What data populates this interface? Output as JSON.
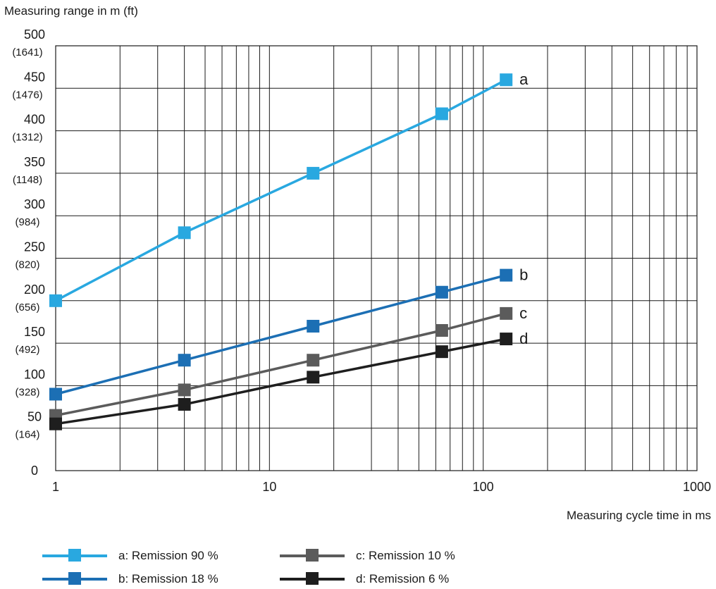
{
  "chart_data": {
    "type": "line",
    "ylabel": "Measuring range in m (ft)",
    "xlabel": "Measuring cycle time in ms",
    "x_scale": "log",
    "xlim": [
      1,
      1000
    ],
    "ylim": [
      0,
      500
    ],
    "x_ticks": [
      {
        "value": 1,
        "label": "1"
      },
      {
        "value": 10,
        "label": "10"
      },
      {
        "value": 100,
        "label": "100"
      },
      {
        "value": 1000,
        "label": "1000"
      }
    ],
    "y_ticks": [
      {
        "value": 0,
        "label": "0",
        "sub": ""
      },
      {
        "value": 50,
        "label": "50",
        "sub": "(164)"
      },
      {
        "value": 100,
        "label": "100",
        "sub": "(328)"
      },
      {
        "value": 150,
        "label": "150",
        "sub": "(492)"
      },
      {
        "value": 200,
        "label": "200",
        "sub": "(656)"
      },
      {
        "value": 250,
        "label": "250",
        "sub": "(820)"
      },
      {
        "value": 300,
        "label": "300",
        "sub": "(984)"
      },
      {
        "value": 350,
        "label": "350",
        "sub": "(1148)"
      },
      {
        "value": 400,
        "label": "400",
        "sub": "(1312)"
      },
      {
        "value": 450,
        "label": "450",
        "sub": "(1476)"
      },
      {
        "value": 500,
        "label": "500",
        "sub": "(1641)"
      }
    ],
    "grid": true,
    "series": [
      {
        "name": "a: Remission 90 %",
        "end_label": "a",
        "color": "#29a8e0",
        "x": [
          1,
          4,
          16,
          64,
          128
        ],
        "y": [
          200,
          280,
          350,
          420,
          460
        ]
      },
      {
        "name": "b: Remission 18 %",
        "end_label": "b",
        "color": "#1c6fb4",
        "x": [
          1,
          4,
          16,
          64,
          128
        ],
        "y": [
          90,
          130,
          170,
          210,
          230
        ]
      },
      {
        "name": "c: Remission 10 %",
        "end_label": "c",
        "color": "#5b5b5b",
        "x": [
          1,
          4,
          16,
          64,
          128
        ],
        "y": [
          65,
          95,
          130,
          165,
          185
        ]
      },
      {
        "name": "d: Remission 6 %",
        "end_label": "d",
        "color": "#1e1e1e",
        "x": [
          1,
          4,
          16,
          64,
          128
        ],
        "y": [
          55,
          78,
          110,
          140,
          155
        ]
      }
    ],
    "legend_position": "bottom"
  }
}
